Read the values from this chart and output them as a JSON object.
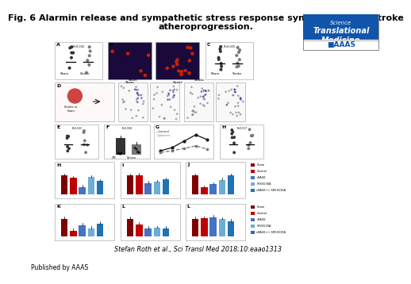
{
  "title_line1": "Fig. 6 Alarmin release and sympathetic stress response synergize in poststroke",
  "title_line2": "atheroprogression.",
  "citation": "Stefan Roth et al., Sci Transl Med 2018;10:eaao1313",
  "published_by": "Published by AAAS",
  "bg_color": "#ffffff",
  "title_fontsize": 8.0,
  "citation_fontsize": 6.0,
  "logo_text_science": "Science",
  "logo_text_journal": "Translational\nMedicine",
  "logo_bg": "#1155aa",
  "logo_text_color": "#ffffff",
  "logo_aaas_color": "#1155aa",
  "bar_colors_2": [
    "#555555",
    "#888888"
  ],
  "bar_colors_multi": [
    "#7f0000",
    "#c00000",
    "#4472c4",
    "#6baed6",
    "#2171b5"
  ],
  "legend_labels": [
    "Sham",
    "Control",
    "sRAGE",
    "SR59230A",
    "sRAGE\n+ SR59230A"
  ],
  "dark_blue_img": "#1a0a3c",
  "red_stain": "#cc2200",
  "flow_dot_color": "#444444",
  "panel_edge": "#999999",
  "scatter_color1": "#333333",
  "scatter_color2": "#777777"
}
